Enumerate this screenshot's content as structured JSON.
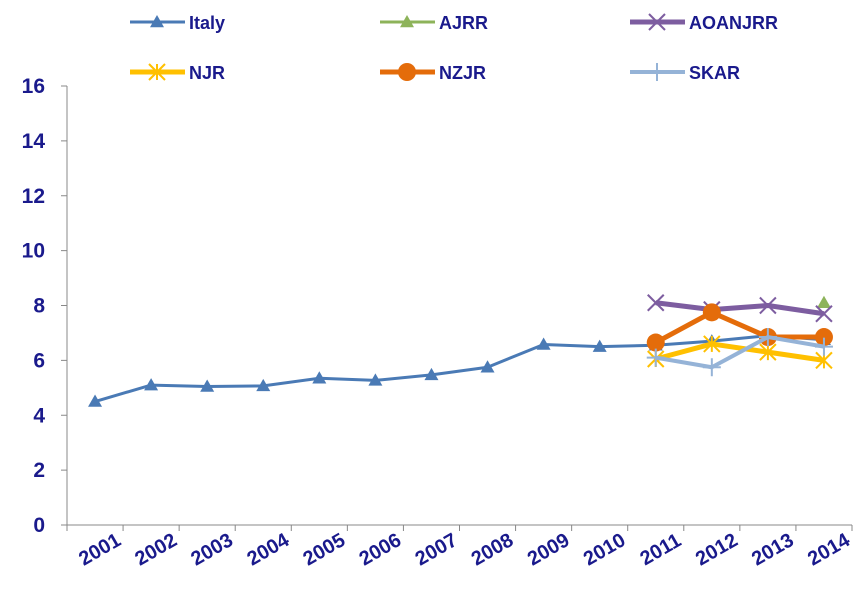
{
  "chart_data": {
    "type": "line",
    "title": "",
    "xlabel": "",
    "ylabel": "",
    "ylim": [
      0,
      16
    ],
    "y_ticks": [
      "0",
      "2",
      "4",
      "6",
      "8",
      "10",
      "12",
      "14",
      "16"
    ],
    "x": [
      "2001",
      "2002",
      "2003",
      "2004",
      "2005",
      "2006",
      "2007",
      "2008",
      "2009",
      "2010",
      "2011",
      "2012",
      "2013",
      "2014"
    ],
    "grid": false,
    "legend_position": "top",
    "series": [
      {
        "name": "Italy",
        "color": "#4a7ab5",
        "marker": "triangle",
        "values": [
          4.5,
          5.1,
          5.05,
          5.07,
          5.35,
          5.27,
          5.47,
          5.75,
          6.58,
          6.5,
          6.55,
          6.7,
          6.9,
          6.75
        ]
      },
      {
        "name": "AJRR",
        "color": "#8db35a",
        "marker": "triangle",
        "values": [
          null,
          null,
          null,
          null,
          null,
          null,
          null,
          null,
          null,
          null,
          null,
          null,
          null,
          8.1
        ]
      },
      {
        "name": "AOANJRR",
        "color": "#7d5da0",
        "marker": "x",
        "values": [
          null,
          null,
          null,
          null,
          null,
          null,
          null,
          null,
          null,
          null,
          8.1,
          7.85,
          8.0,
          7.7
        ]
      },
      {
        "name": "NJR",
        "color": "#ffc000",
        "marker": "asterisk",
        "values": [
          null,
          null,
          null,
          null,
          null,
          null,
          null,
          null,
          null,
          null,
          6.05,
          6.6,
          6.3,
          6.0
        ]
      },
      {
        "name": "NZJR",
        "color": "#e46c0a",
        "marker": "circle",
        "values": [
          null,
          null,
          null,
          null,
          null,
          null,
          null,
          null,
          null,
          null,
          6.65,
          7.75,
          6.85,
          6.85
        ]
      },
      {
        "name": "SKAR",
        "color": "#95b3d7",
        "marker": "plus",
        "values": [
          null,
          null,
          null,
          null,
          null,
          null,
          null,
          null,
          null,
          null,
          6.1,
          5.75,
          6.85,
          6.5
        ]
      }
    ]
  }
}
